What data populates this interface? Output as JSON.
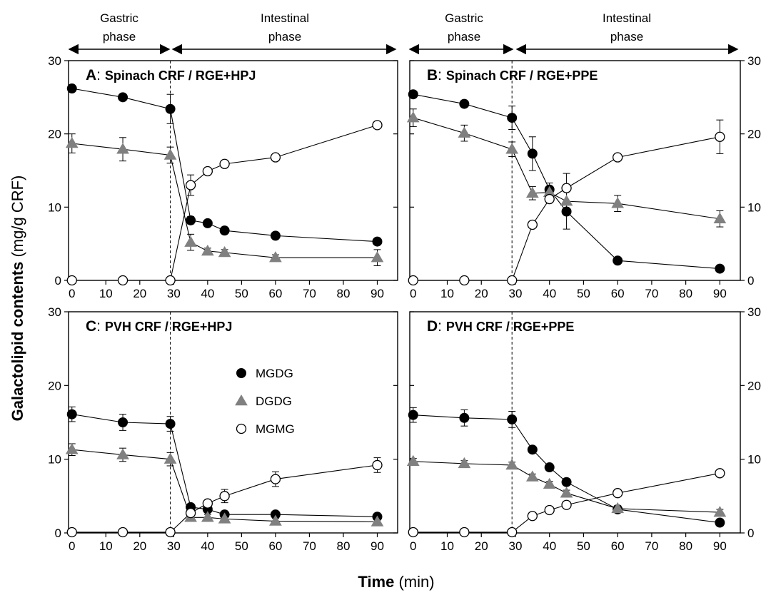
{
  "figure": {
    "ylabel_bold": "Galactolipid contents",
    "ylabel_rest": " (mg/g CRF)",
    "xlabel_bold": "Time",
    "xlabel_rest": " (min)"
  },
  "phases": {
    "gastric": [
      "Gastric",
      "phase"
    ],
    "intestinal": [
      "Intestinal",
      "phase"
    ]
  },
  "legend": [
    {
      "name": "MGDG",
      "marker": "circle-filled",
      "color": "#000000"
    },
    {
      "name": "DGDG",
      "marker": "triangle",
      "color": "#808080"
    },
    {
      "name": "MGMG",
      "marker": "circle-open",
      "color": "#000000"
    }
  ],
  "axes": {
    "x_ticks": [
      0,
      10,
      20,
      30,
      40,
      50,
      60,
      70,
      80,
      90
    ],
    "y_ticks_top": [
      0,
      10,
      20,
      30
    ],
    "y_ticks_bottom": [
      0,
      10,
      20,
      30
    ],
    "phase_boundary_x": 29
  },
  "chart_data": [
    {
      "type": "line",
      "panel": "A",
      "title": "Spinach CRF / RGE+HPJ",
      "xlim": [
        -1,
        96
      ],
      "ylim": [
        0,
        30
      ],
      "series": [
        {
          "name": "MGDG",
          "x": [
            0,
            15,
            29,
            35,
            40,
            45,
            60,
            90
          ],
          "y": [
            26.2,
            25.0,
            23.4,
            8.2,
            7.8,
            6.8,
            6.1,
            5.3
          ],
          "err": [
            0.4,
            0.4,
            2.0,
            0.5,
            0.4,
            0.4,
            0.4,
            0.4
          ]
        },
        {
          "name": "DGDG",
          "x": [
            0,
            15,
            29,
            35,
            40,
            45,
            60,
            90
          ],
          "y": [
            18.7,
            17.9,
            17.1,
            5.2,
            4.0,
            3.8,
            3.1,
            3.1
          ],
          "err": [
            1.3,
            1.6,
            1.1,
            1.1,
            0.4,
            0.4,
            0.4,
            1.1
          ]
        },
        {
          "name": "MGMG",
          "x": [
            0,
            15,
            29,
            35,
            40,
            45,
            60,
            90
          ],
          "y": [
            0,
            0,
            0,
            13.0,
            14.9,
            15.9,
            16.8,
            21.2
          ],
          "err": [
            0,
            0,
            0,
            1.4,
            0.4,
            0.4,
            0.4,
            0.4
          ]
        }
      ]
    },
    {
      "type": "line",
      "panel": "B",
      "title": "Spinach CRF / RGE+PPE",
      "xlim": [
        -1,
        96
      ],
      "ylim": [
        0,
        30
      ],
      "series": [
        {
          "name": "MGDG",
          "x": [
            0,
            15,
            29,
            35,
            40,
            45,
            60,
            90
          ],
          "y": [
            25.4,
            24.1,
            22.2,
            17.3,
            12.4,
            9.4,
            2.7,
            1.6
          ],
          "err": [
            0.4,
            0.4,
            1.6,
            2.3,
            0.9,
            0.4,
            0.4,
            0.4
          ]
        },
        {
          "name": "DGDG",
          "x": [
            0,
            15,
            29,
            35,
            40,
            45,
            60,
            90
          ],
          "y": [
            22.2,
            20.1,
            17.9,
            11.9,
            12.0,
            10.8,
            10.5,
            8.4
          ],
          "err": [
            1.2,
            1.1,
            1.0,
            0.9,
            0.8,
            3.8,
            1.1,
            1.1
          ]
        },
        {
          "name": "MGMG",
          "x": [
            0,
            15,
            29,
            35,
            40,
            45,
            60,
            90
          ],
          "y": [
            0,
            0,
            0,
            7.6,
            11.1,
            12.6,
            16.8,
            19.6
          ],
          "err": [
            0,
            0,
            0,
            0.4,
            0.4,
            0.4,
            0.4,
            2.3
          ]
        }
      ]
    },
    {
      "type": "line",
      "panel": "C",
      "title": "PVH CRF / RGE+HPJ",
      "xlim": [
        -1,
        96
      ],
      "ylim": [
        0,
        30
      ],
      "series": [
        {
          "name": "MGDG",
          "x": [
            0,
            15,
            29,
            35,
            40,
            45,
            60,
            90
          ],
          "y": [
            16.1,
            15.0,
            14.8,
            3.5,
            3.2,
            2.5,
            2.5,
            2.2
          ],
          "err": [
            1.0,
            1.1,
            1.0,
            0.4,
            0.4,
            0.4,
            0.4,
            0.4
          ]
        },
        {
          "name": "DGDG",
          "x": [
            0,
            15,
            29,
            35,
            40,
            45,
            60,
            90
          ],
          "y": [
            11.3,
            10.6,
            10.0,
            2.1,
            2.1,
            1.9,
            1.6,
            1.5
          ],
          "err": [
            0.8,
            0.9,
            0.9,
            0.4,
            0.4,
            0.4,
            0.4,
            0.4
          ]
        },
        {
          "name": "MGMG",
          "x": [
            0,
            15,
            29,
            35,
            40,
            45,
            60,
            90
          ],
          "y": [
            0.1,
            0.1,
            0.1,
            2.7,
            4.0,
            5.0,
            7.3,
            9.2
          ],
          "err": [
            0,
            0,
            0,
            0.4,
            0.4,
            0.9,
            1.0,
            1.0
          ]
        }
      ]
    },
    {
      "type": "line",
      "panel": "D",
      "title": "PVH CRF / RGE+PPE",
      "xlim": [
        -1,
        96
      ],
      "ylim": [
        0,
        30
      ],
      "series": [
        {
          "name": "MGDG",
          "x": [
            0,
            15,
            29,
            35,
            40,
            45,
            60,
            90
          ],
          "y": [
            16.0,
            15.6,
            15.4,
            11.3,
            8.9,
            6.9,
            3.2,
            1.4
          ],
          "err": [
            1.0,
            1.1,
            1.1,
            0.4,
            0.4,
            0.4,
            0.4,
            0.4
          ]
        },
        {
          "name": "DGDG",
          "x": [
            0,
            15,
            29,
            35,
            40,
            45,
            60,
            90
          ],
          "y": [
            9.7,
            9.4,
            9.2,
            7.6,
            6.6,
            5.4,
            3.3,
            2.8
          ],
          "err": [
            0.4,
            0.4,
            0.4,
            0.4,
            0.4,
            0.4,
            0.4,
            0.4
          ]
        },
        {
          "name": "MGMG",
          "x": [
            0,
            15,
            29,
            35,
            40,
            45,
            60,
            90
          ],
          "y": [
            0.1,
            0.1,
            0.1,
            2.3,
            3.1,
            3.8,
            5.4,
            8.1
          ],
          "err": [
            0,
            0,
            0,
            0.4,
            0.4,
            0.4,
            0.4,
            0.4
          ]
        }
      ]
    }
  ]
}
